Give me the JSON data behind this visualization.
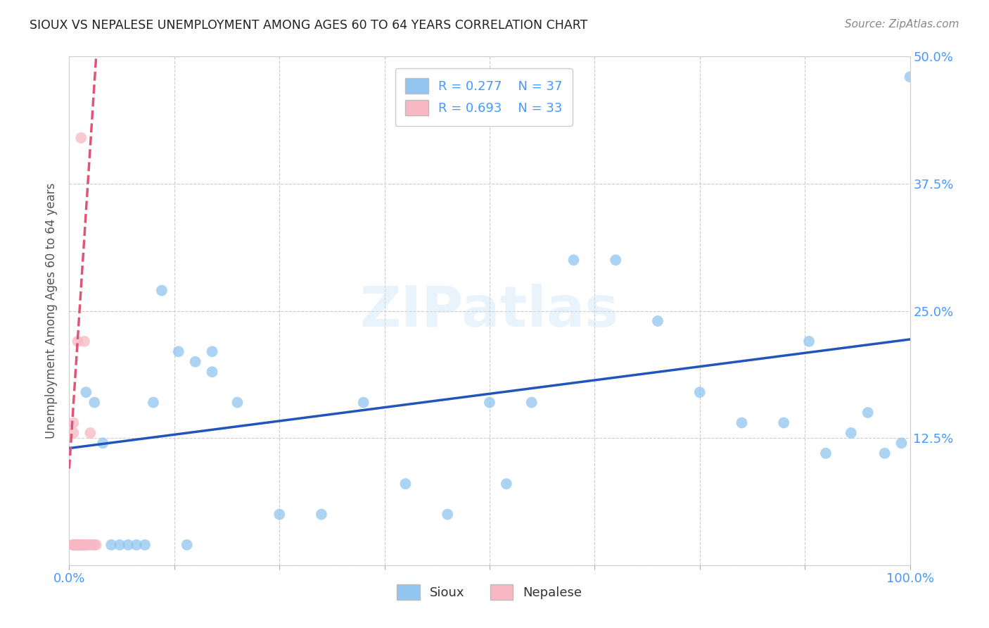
{
  "title": "SIOUX VS NEPALESE UNEMPLOYMENT AMONG AGES 60 TO 64 YEARS CORRELATION CHART",
  "source": "Source: ZipAtlas.com",
  "ylabel": "Unemployment Among Ages 60 to 64 years",
  "xlim": [
    0.0,
    1.0
  ],
  "ylim": [
    0.0,
    0.5
  ],
  "xticks": [
    0.0,
    0.125,
    0.25,
    0.375,
    0.5,
    0.625,
    0.75,
    0.875,
    1.0
  ],
  "xticklabels": [
    "0.0%",
    "",
    "",
    "",
    "",
    "",
    "",
    "",
    "100.0%"
  ],
  "yticks": [
    0.0,
    0.125,
    0.25,
    0.375,
    0.5
  ],
  "yticklabels": [
    "",
    "12.5%",
    "25.0%",
    "37.5%",
    "50.0%"
  ],
  "sioux_color": "#92c5f0",
  "nepalese_color": "#f7b8c4",
  "sioux_line_color": "#2255bb",
  "nepalese_line_color": "#e05575",
  "background_color": "#ffffff",
  "tick_color": "#4499ff",
  "sioux_scatter_x": [
    0.02,
    0.03,
    0.04,
    0.05,
    0.06,
    0.07,
    0.08,
    0.09,
    0.1,
    0.11,
    0.13,
    0.14,
    0.15,
    0.17,
    0.17,
    0.2,
    0.25,
    0.3,
    0.35,
    0.4,
    0.45,
    0.5,
    0.52,
    0.55,
    0.6,
    0.65,
    0.7,
    0.75,
    0.8,
    0.85,
    0.88,
    0.9,
    0.93,
    0.95,
    0.97,
    0.99,
    1.0
  ],
  "sioux_scatter_y": [
    0.17,
    0.16,
    0.12,
    0.02,
    0.02,
    0.02,
    0.02,
    0.02,
    0.16,
    0.27,
    0.21,
    0.02,
    0.2,
    0.19,
    0.21,
    0.16,
    0.05,
    0.05,
    0.16,
    0.08,
    0.05,
    0.16,
    0.08,
    0.16,
    0.3,
    0.3,
    0.24,
    0.17,
    0.14,
    0.14,
    0.22,
    0.11,
    0.13,
    0.15,
    0.11,
    0.12,
    0.48
  ],
  "nepalese_scatter_x": [
    0.005,
    0.005,
    0.005,
    0.005,
    0.005,
    0.005,
    0.005,
    0.005,
    0.008,
    0.008,
    0.01,
    0.01,
    0.01,
    0.012,
    0.012,
    0.012,
    0.012,
    0.012,
    0.014,
    0.015,
    0.015,
    0.015,
    0.015,
    0.018,
    0.018,
    0.018,
    0.02,
    0.022,
    0.025,
    0.025,
    0.028,
    0.03,
    0.032
  ],
  "nepalese_scatter_y": [
    0.13,
    0.14,
    0.02,
    0.02,
    0.02,
    0.02,
    0.02,
    0.02,
    0.02,
    0.02,
    0.22,
    0.02,
    0.02,
    0.02,
    0.02,
    0.02,
    0.02,
    0.02,
    0.42,
    0.02,
    0.02,
    0.02,
    0.02,
    0.02,
    0.22,
    0.02,
    0.02,
    0.02,
    0.13,
    0.02,
    0.02,
    0.02,
    0.02
  ],
  "sioux_line_x0": 0.0,
  "sioux_line_y0": 0.115,
  "sioux_line_x1": 1.0,
  "sioux_line_y1": 0.222,
  "nep_line_x0": 0.0,
  "nep_line_y0": 0.095,
  "nep_line_x1": 0.032,
  "nep_line_y1": 0.5
}
